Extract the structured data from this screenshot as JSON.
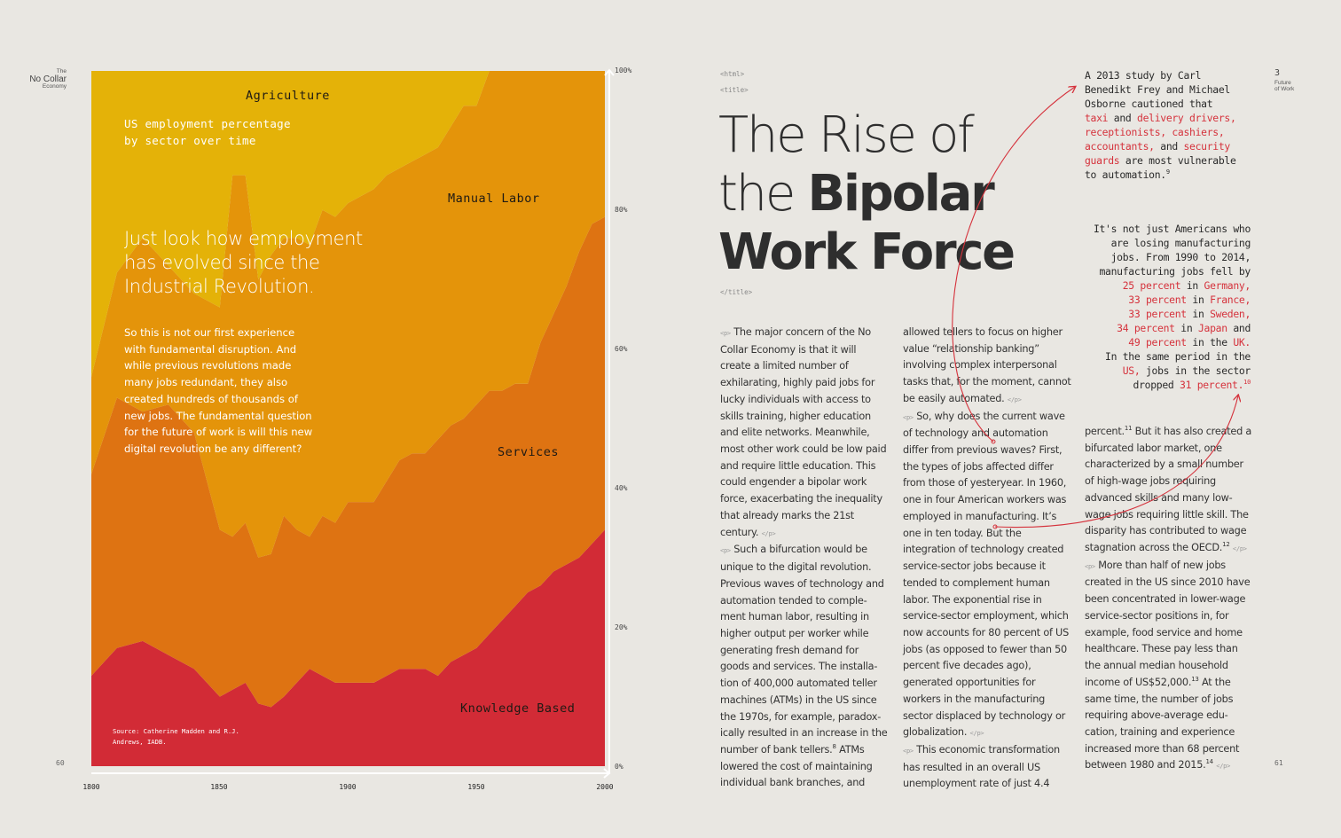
{
  "left_page": {
    "running_head": {
      "top": "The",
      "middle": "No Collar",
      "bottom": "Economy"
    },
    "folio": "60"
  },
  "chart_data": {
    "type": "area",
    "stacked": true,
    "percent_stacked": true,
    "title": "US employment percentage by sector over time",
    "x": [
      1800,
      1810,
      1820,
      1830,
      1840,
      1850,
      1855,
      1860,
      1865,
      1870,
      1875,
      1880,
      1885,
      1890,
      1895,
      1900,
      1905,
      1910,
      1915,
      1920,
      1925,
      1930,
      1935,
      1940,
      1945,
      1950,
      1955,
      1960,
      1965,
      1970,
      1975,
      1980,
      1985,
      1990,
      1995,
      2000
    ],
    "series": [
      {
        "name": "Knowledge Based",
        "color": "#d22b36",
        "values": [
          13,
          17,
          18,
          16,
          14,
          10,
          11,
          12,
          9,
          8.5,
          10,
          12,
          14,
          13,
          12,
          12,
          12,
          12,
          13,
          14,
          14,
          14,
          13,
          15,
          16,
          17,
          19,
          21,
          23,
          25,
          26,
          28,
          29,
          30,
          32,
          34
        ]
      },
      {
        "name": "Services",
        "color": "#de7312",
        "values": [
          29,
          36,
          33,
          36,
          34,
          24,
          22,
          23,
          21,
          22,
          26,
          22,
          19,
          23,
          23,
          26,
          26,
          26,
          28,
          30,
          31,
          31,
          34,
          34,
          34,
          35,
          35,
          33,
          32,
          30,
          35,
          37,
          40,
          44,
          46,
          45
        ]
      },
      {
        "name": "Manual Labor",
        "color": "#e4940a",
        "values": [
          14,
          18,
          25,
          20,
          20,
          32,
          52,
          50,
          40,
          43,
          40,
          42,
          42,
          44,
          44,
          43,
          44,
          45,
          44,
          42,
          42,
          43,
          42,
          43,
          45,
          43,
          46,
          46,
          45,
          45,
          39,
          35,
          31,
          26,
          22,
          21
        ]
      },
      {
        "name": "Agriculture",
        "color": "#e4b208",
        "values": [
          44,
          29,
          24,
          28,
          32,
          34,
          15,
          15,
          30,
          26.5,
          24,
          24,
          25,
          20,
          21,
          19,
          18,
          17,
          15,
          14,
          13,
          12,
          11,
          8,
          5,
          5,
          0,
          0,
          0,
          0,
          0,
          0,
          0,
          0,
          0,
          0
        ]
      }
    ],
    "labels": [
      "Agriculture",
      "Manual Labor",
      "Services",
      "Knowledge Based"
    ],
    "xlim": [
      1800,
      2000
    ],
    "ylim": [
      0,
      100
    ],
    "y_ticks": [
      "0%",
      "20%",
      "40%",
      "60%",
      "80%",
      "100%"
    ],
    "x_ticks": [
      "1800",
      "1850",
      "1900",
      "1950",
      "2000"
    ],
    "grid": false,
    "source": "Source: Catherine Madden and R.J. Andrews, IADB."
  },
  "chart_text": {
    "lead": "Just look how employment has evolved since the Industrial Revolution.",
    "body": "So this is not our first experience with fundamental disruption. And while previous revolutions made many jobs redundant, they also created hundreds of thousands of new jobs. The fundamental question for the future of work is will this new digital revolution be any different?"
  },
  "right_page": {
    "html_open": "<html>",
    "title_open": "<title>",
    "title_close": "</title>",
    "title_line1": "The Rise of",
    "title_line2_light": "the ",
    "title_line2_bold": "Bipolar",
    "title_line3": "Work Force",
    "p_open": "<p>",
    "p_close": "</p>",
    "col1": {
      "p1": "The major concern of the No Collar Economy is that it will create a limited number of exhilarating, highly paid jobs for lucky individuals with access to skills training, higher education and elite networks. Meanwhile, most other work could be low paid and require little education. This could engender a bipolar work force, exacerbating the inequality that already marks the 21st century.",
      "p2a": "Such a bifurcation would be unique to the digital revolution. Previous waves of technology and automation tended to comple­ment human labor, resulting in higher output per worker while generating fresh demand for goods and services. The installa­tion of 400,000 automated teller machines (ATMs) in the US since the 1970s, for example, paradox­ically resulted in an increase in the number of bank tellers.",
      "sup8": "8",
      "p2b": " ATMs lowered the cost of maintaining individual bank branches, and"
    },
    "col2": {
      "p2c": "allowed tellers to focus on higher value “relationship banking” involving complex interpersonal tasks that, for the moment, cannot be easily automated.",
      "p3": "So, why does the current wave of technology and automation differ from previous waves? First, the types of jobs affected differ from those of yesteryear. In 1960, one in four American workers was employed in manufacturing. It’s one in ten today. But the integration of technology created service-sector jobs because it tended to complement human labor. The exponential rise in service-sector employment, which now accounts for 80 percent of US jobs (as opposed to fewer than 50 percent five decades ago), generat­ed opportunities for workers in the manufacturing sector displaced by technology or globalization.",
      "p4a": "This economic transformation has resulted in an overall US unemployment rate of just 4.4"
    },
    "col3": {
      "p4b": "percent.",
      "sup11": "11",
      "p4c": " But it has also created a bifurcated labor market, one characterized by a small number of high-wage jobs requiring advanced skills and many low-wage jobs requiring little skill. The disparity has contributed to wage stagnation across the OECD.",
      "sup12": "12",
      "p5a": "More than half of new jobs created in the US since 2010 have been concentrated in lower-wage service-sector positions in, for example, food service and home healthcare. These pay less than the annual median household income of US$52,000.",
      "sup13": "13",
      "p5b": " At the same time, the number of jobs requiring above-average edu­cation, training and experience increased more than 68 percent between 1980 and 2015.",
      "sup14": "14"
    },
    "note1": {
      "l1": "A 2013 study by Carl",
      "l2": "Benedikt Frey and Michael",
      "l3": "Osborne cautioned that",
      "h1": "taxi",
      "t1": " and ",
      "h2": "delivery drivers,",
      "h3": "receptionists, cashiers,",
      "h4": "accountants,",
      "t2": " and ",
      "h5": "security",
      "h6": "guards",
      "t3": " are most vulnerable",
      "l4": "to automation.",
      "sup9": "9"
    },
    "note2": {
      "l1": "It's not just Americans who",
      "l2": "are losing manufacturing",
      "l3": "jobs. From 1990 to 2014,",
      "l4": "manufacturing jobs fell by",
      "r1h": "25 percent",
      "r1t": " in ",
      "r1c": "Germany,",
      "r2h": "33 percent",
      "r2t": " in ",
      "r2c": "France,",
      "r3h": "33 percent",
      "r3t": " in ",
      "r3c": "Sweden,",
      "r4h": "34 percent",
      "r4t": " in ",
      "r4c": "Japan",
      "r4e": " and",
      "r5h": "49 percent",
      "r5t": " in the ",
      "r5c": "UK.",
      "l5": "In the same period in the",
      "l6h": "US,",
      "l6t": " jobs in the sector",
      "l7t": "dropped ",
      "l7h": "31 percent.",
      "sup10": "10"
    },
    "side_number": "3",
    "side_label_1": "Future",
    "side_label_2": "of Work",
    "folio": "61"
  },
  "colors": {
    "background": "#e9e7e2",
    "accent": "#d5323c"
  }
}
